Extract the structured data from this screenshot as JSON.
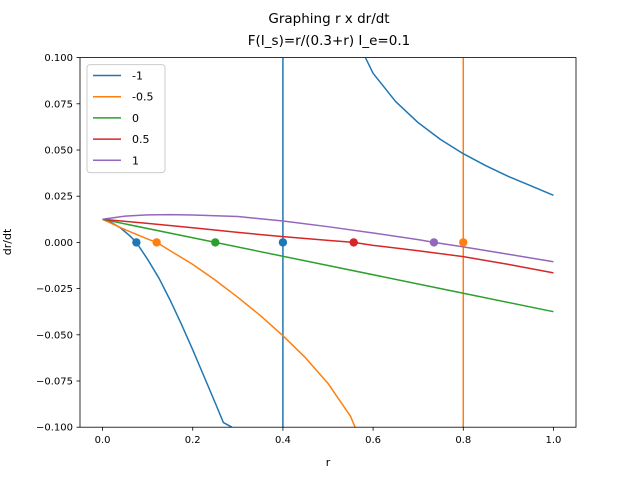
{
  "chart_data": {
    "type": "line",
    "title_line1": "Graphing r x dr/dt",
    "title_line2": "F(I_s)=r/(0.3+r)   I_e=0.1",
    "xlabel": "r",
    "ylabel": "dr/dt",
    "xlim": [
      -0.05,
      1.05
    ],
    "ylim": [
      -0.1,
      0.1
    ],
    "xticks": [
      "0.0",
      "0.2",
      "0.4",
      "0.6",
      "0.8",
      "1.0"
    ],
    "xtick_values": [
      0.0,
      0.2,
      0.4,
      0.6,
      0.8,
      1.0
    ],
    "yticks": [
      "−0.100",
      "−0.075",
      "−0.050",
      "−0.025",
      "0.000",
      "0.025",
      "0.050",
      "0.075",
      "0.100"
    ],
    "ytick_values": [
      -0.1,
      -0.075,
      -0.05,
      -0.025,
      0.0,
      0.025,
      0.05,
      0.075,
      0.1
    ],
    "legend_position": "top-left",
    "grid": false,
    "series": [
      {
        "name": "-1",
        "color": "#1f77b4",
        "points": [
          [
            0.0,
            0.0125
          ],
          [
            0.02,
            0.0107
          ],
          [
            0.04,
            0.0078
          ],
          [
            0.06,
            0.0037
          ],
          [
            0.075,
            0.0
          ],
          [
            0.1,
            -0.0092
          ],
          [
            0.125,
            -0.0193
          ],
          [
            0.15,
            -0.0313
          ],
          [
            0.175,
            -0.0443
          ],
          [
            0.2,
            -0.0581
          ],
          [
            0.225,
            -0.0725
          ],
          [
            0.25,
            -0.0869
          ],
          [
            0.268,
            -0.0975
          ],
          [
            0.287,
            -0.1
          ]
        ],
        "equilibria": [
          0.075,
          0.4
        ]
      },
      {
        "name": "-0.5",
        "color": "#ff7f0e",
        "points": [
          [
            0.0,
            0.0125
          ],
          [
            0.05,
            0.0069
          ],
          [
            0.1,
            0.0018
          ],
          [
            0.12,
            0.0
          ],
          [
            0.15,
            -0.0045
          ],
          [
            0.2,
            -0.0119
          ],
          [
            0.25,
            -0.0204
          ],
          [
            0.3,
            -0.0297
          ],
          [
            0.35,
            -0.0396
          ],
          [
            0.4,
            -0.0505
          ],
          [
            0.45,
            -0.0624
          ],
          [
            0.5,
            -0.0763
          ],
          [
            0.55,
            -0.0941
          ],
          [
            0.56,
            -0.1
          ]
        ],
        "equilibria": [
          0.12,
          0.8
        ]
      },
      {
        "name": "0",
        "color": "#2ca02c",
        "points": [
          [
            0.0,
            0.0125
          ],
          [
            0.25,
            0.0
          ],
          [
            0.5,
            -0.0125
          ],
          [
            0.75,
            -0.025
          ],
          [
            1.0,
            -0.0375
          ]
        ],
        "equilibria": [
          0.25
        ]
      },
      {
        "name": "0.5",
        "color": "#d62728",
        "points": [
          [
            0.0,
            0.0125
          ],
          [
            0.1,
            0.0103
          ],
          [
            0.2,
            0.0079
          ],
          [
            0.3,
            0.0054
          ],
          [
            0.4,
            0.0031
          ],
          [
            0.5,
            0.0011
          ],
          [
            0.557,
            0.0
          ],
          [
            0.6,
            -0.0016
          ],
          [
            0.7,
            -0.0045
          ],
          [
            0.8,
            -0.0077
          ],
          [
            0.9,
            -0.0119
          ],
          [
            1.0,
            -0.0165
          ]
        ],
        "equilibria": [
          0.557
        ]
      },
      {
        "name": "1",
        "color": "#9467bd",
        "points": [
          [
            0.0,
            0.0125
          ],
          [
            0.05,
            0.0142
          ],
          [
            0.1,
            0.0149
          ],
          [
            0.15,
            0.015
          ],
          [
            0.2,
            0.0148
          ],
          [
            0.3,
            0.014
          ],
          [
            0.4,
            0.0116
          ],
          [
            0.5,
            0.0085
          ],
          [
            0.6,
            0.0051
          ],
          [
            0.7,
            0.0015
          ],
          [
            0.735,
            0.0
          ],
          [
            0.8,
            -0.0024
          ],
          [
            0.9,
            -0.0064
          ],
          [
            1.0,
            -0.0105
          ]
        ],
        "equilibria": [
          0.735
        ]
      }
    ],
    "vertical_lines": [
      {
        "series": "-1",
        "x": 0.4,
        "color": "#1f77b4"
      },
      {
        "series": "-0.5",
        "x": 0.8,
        "color": "#ff7f0e"
      }
    ],
    "upper_branch": {
      "series": "-1",
      "color": "#1f77b4",
      "points": [
        [
          0.583,
          0.1
        ],
        [
          0.6,
          0.0915
        ],
        [
          0.65,
          0.0762
        ],
        [
          0.7,
          0.0648
        ],
        [
          0.75,
          0.0556
        ],
        [
          0.8,
          0.048
        ],
        [
          0.85,
          0.0415
        ],
        [
          0.9,
          0.0357
        ],
        [
          0.95,
          0.0306
        ],
        [
          1.0,
          0.0255
        ]
      ]
    }
  }
}
